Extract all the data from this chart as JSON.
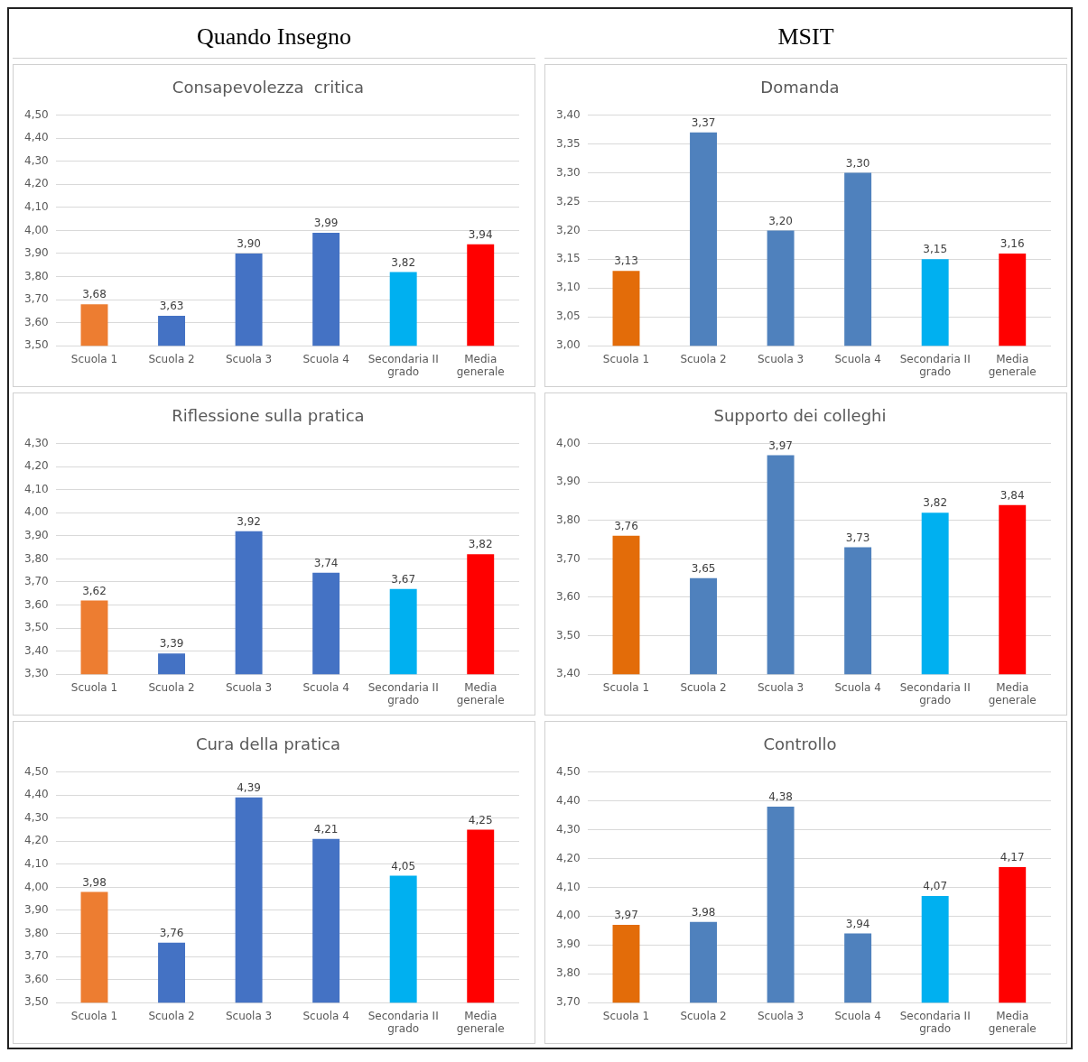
{
  "chart_data": [
    {
      "type": "other",
      "title": "Quando Insegno"
    },
    {
      "type": "other",
      "title": "MSIT"
    },
    {
      "type": "bar",
      "title": "Consapevolezza  critica",
      "categories": [
        "Scuola 1",
        "Scuola 2",
        "Scuola 3",
        "Scuola 4",
        "Secondaria II grado",
        "Media generale"
      ],
      "values": [
        3.68,
        3.63,
        3.9,
        3.99,
        3.82,
        3.94
      ],
      "value_labels": [
        "3,68",
        "3,63",
        "3,90",
        "3,99",
        "3,82",
        "3,94"
      ],
      "colors": [
        "#ed7d31",
        "#4472c4",
        "#4472c4",
        "#4472c4",
        "#00b0f0",
        "#ff0000"
      ],
      "ylim": [
        3.5,
        4.5
      ],
      "yticks": [
        {
          "value": 3.5,
          "label": "3,50"
        },
        {
          "value": 3.6,
          "label": "3,60"
        },
        {
          "value": 3.7,
          "label": "3,70"
        },
        {
          "value": 3.8,
          "label": "3,80"
        },
        {
          "value": 3.9,
          "label": "3,90"
        },
        {
          "value": 4.0,
          "label": "4,00"
        },
        {
          "value": 4.1,
          "label": "4,10"
        },
        {
          "value": 4.2,
          "label": "4,20"
        },
        {
          "value": 4.3,
          "label": "4,30"
        },
        {
          "value": 4.4,
          "label": "4,40"
        },
        {
          "value": 4.5,
          "label": "4,50"
        }
      ],
      "grid": "y"
    },
    {
      "type": "bar",
      "title": "Domanda",
      "categories": [
        "Scuola 1",
        "Scuola 2",
        "Scuola 3",
        "Scuola 4",
        "Secondaria II grado",
        "Media generale"
      ],
      "values": [
        3.13,
        3.37,
        3.2,
        3.3,
        3.15,
        3.16
      ],
      "value_labels": [
        "3,13",
        "3,37",
        "3,20",
        "3,30",
        "3,15",
        "3,16"
      ],
      "colors": [
        "#e36c09",
        "#4f81bd",
        "#4f81bd",
        "#4f81bd",
        "#00b0f0",
        "#ff0000"
      ],
      "ylim": [
        3.0,
        3.4
      ],
      "yticks": [
        {
          "value": 3.0,
          "label": "3,00"
        },
        {
          "value": 3.05,
          "label": "3,05"
        },
        {
          "value": 3.1,
          "label": "3,10"
        },
        {
          "value": 3.15,
          "label": "3,15"
        },
        {
          "value": 3.2,
          "label": "3,20"
        },
        {
          "value": 3.25,
          "label": "3,25"
        },
        {
          "value": 3.3,
          "label": "3,30"
        },
        {
          "value": 3.35,
          "label": "3,35"
        },
        {
          "value": 3.4,
          "label": "3,40"
        }
      ],
      "grid": "y"
    },
    {
      "type": "bar",
      "title": "Riflessione sulla pratica",
      "categories": [
        "Scuola 1",
        "Scuola 2",
        "Scuola 3",
        "Scuola 4",
        "Secondaria II grado",
        "Media generale"
      ],
      "values": [
        3.62,
        3.39,
        3.92,
        3.74,
        3.67,
        3.82
      ],
      "value_labels": [
        "3,62",
        "3,39",
        "3,92",
        "3,74",
        "3,67",
        "3,82"
      ],
      "colors": [
        "#ed7d31",
        "#4472c4",
        "#4472c4",
        "#4472c4",
        "#00b0f0",
        "#ff0000"
      ],
      "ylim": [
        3.3,
        4.3
      ],
      "yticks": [
        {
          "value": 3.3,
          "label": "3,30"
        },
        {
          "value": 3.4,
          "label": "3,40"
        },
        {
          "value": 3.5,
          "label": "3,50"
        },
        {
          "value": 3.6,
          "label": "3,60"
        },
        {
          "value": 3.7,
          "label": "3,70"
        },
        {
          "value": 3.8,
          "label": "3,80"
        },
        {
          "value": 3.9,
          "label": "3,90"
        },
        {
          "value": 4.0,
          "label": "4,00"
        },
        {
          "value": 4.1,
          "label": "4,10"
        },
        {
          "value": 4.2,
          "label": "4,20"
        },
        {
          "value": 4.3,
          "label": "4,30"
        }
      ],
      "grid": "y"
    },
    {
      "type": "bar",
      "title": "Supporto dei colleghi",
      "categories": [
        "Scuola 1",
        "Scuola 2",
        "Scuola 3",
        "Scuola 4",
        "Secondaria II grado",
        "Media generale"
      ],
      "values": [
        3.76,
        3.65,
        3.97,
        3.73,
        3.82,
        3.84
      ],
      "value_labels": [
        "3,76",
        "3,65",
        "3,97",
        "3,73",
        "3,82",
        "3,84"
      ],
      "colors": [
        "#e36c09",
        "#4f81bd",
        "#4f81bd",
        "#4f81bd",
        "#00b0f0",
        "#ff0000"
      ],
      "ylim": [
        3.4,
        4.0
      ],
      "yticks": [
        {
          "value": 3.4,
          "label": "3,40"
        },
        {
          "value": 3.5,
          "label": "3,50"
        },
        {
          "value": 3.6,
          "label": "3,60"
        },
        {
          "value": 3.7,
          "label": "3,70"
        },
        {
          "value": 3.8,
          "label": "3,80"
        },
        {
          "value": 3.9,
          "label": "3,90"
        },
        {
          "value": 4.0,
          "label": "4,00"
        }
      ],
      "grid": "y"
    },
    {
      "type": "bar",
      "title": "Cura della pratica",
      "categories": [
        "Scuola 1",
        "Scuola 2",
        "Scuola 3",
        "Scuola 4",
        "Secondaria II grado",
        "Media generale"
      ],
      "values": [
        3.98,
        3.76,
        4.39,
        4.21,
        4.05,
        4.25
      ],
      "value_labels": [
        "3,98",
        "3,76",
        "4,39",
        "4,21",
        "4,05",
        "4,25"
      ],
      "colors": [
        "#ed7d31",
        "#4472c4",
        "#4472c4",
        "#4472c4",
        "#00b0f0",
        "#ff0000"
      ],
      "ylim": [
        3.5,
        4.5
      ],
      "yticks": [
        {
          "value": 3.5,
          "label": "3,50"
        },
        {
          "value": 3.6,
          "label": "3,60"
        },
        {
          "value": 3.7,
          "label": "3,70"
        },
        {
          "value": 3.8,
          "label": "3,80"
        },
        {
          "value": 3.9,
          "label": "3,90"
        },
        {
          "value": 4.0,
          "label": "4,00"
        },
        {
          "value": 4.1,
          "label": "4,10"
        },
        {
          "value": 4.2,
          "label": "4,20"
        },
        {
          "value": 4.3,
          "label": "4,30"
        },
        {
          "value": 4.4,
          "label": "4,40"
        },
        {
          "value": 4.5,
          "label": "4,50"
        }
      ],
      "grid": "y"
    },
    {
      "type": "bar",
      "title": "Controllo",
      "categories": [
        "Scuola 1",
        "Scuola 2",
        "Scuola 3",
        "Scuola 4",
        "Secondaria II grado",
        "Media generale"
      ],
      "values": [
        3.97,
        3.98,
        4.38,
        3.94,
        4.07,
        4.17
      ],
      "value_labels": [
        "3,97",
        "3,98",
        "4,38",
        "3,94",
        "4,07",
        "4,17"
      ],
      "colors": [
        "#e36c09",
        "#4f81bd",
        "#4f81bd",
        "#4f81bd",
        "#00b0f0",
        "#ff0000"
      ],
      "ylim": [
        3.7,
        4.5
      ],
      "yticks": [
        {
          "value": 3.7,
          "label": "3,70"
        },
        {
          "value": 3.8,
          "label": "3,80"
        },
        {
          "value": 3.9,
          "label": "3,90"
        },
        {
          "value": 4.0,
          "label": "4,00"
        },
        {
          "value": 4.1,
          "label": "4,10"
        },
        {
          "value": 4.2,
          "label": "4,20"
        },
        {
          "value": 4.3,
          "label": "4,30"
        },
        {
          "value": 4.4,
          "label": "4,40"
        },
        {
          "value": 4.5,
          "label": "4,50"
        }
      ],
      "grid": "y"
    }
  ]
}
